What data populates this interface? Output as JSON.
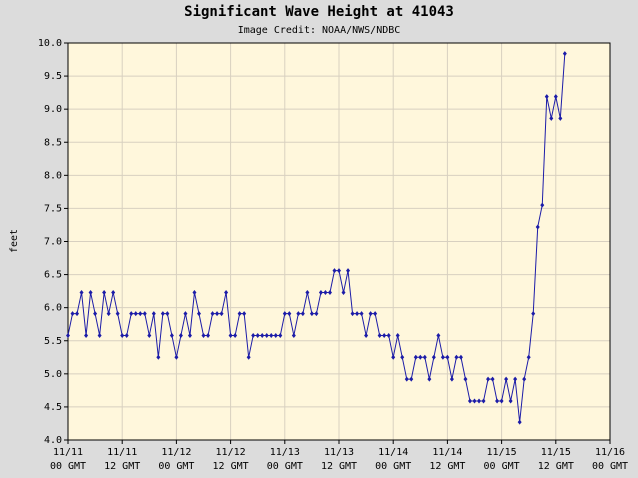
{
  "chart_data": {
    "type": "line",
    "title": "Significant Wave Height at 41043",
    "subtitle": "Image Credit: NOAA/NWS/NDBC",
    "y_label": "feet",
    "grid": true,
    "xlim": [
      "11/11 00",
      "11/16 00"
    ],
    "ylim": [
      4,
      10
    ],
    "yticks": [
      {
        "value": 4,
        "label": "4.0"
      },
      4.5,
      {
        "value": 5,
        "label": "5.0"
      },
      5.5,
      {
        "value": 6,
        "label": "6.0"
      },
      6.5,
      {
        "value": 7,
        "label": "7.0"
      },
      7.5,
      {
        "value": 8,
        "label": "8.0"
      },
      8.5,
      {
        "value": 9,
        "label": "9.0"
      },
      9.5,
      {
        "value": 10,
        "label": "10.0"
      }
    ],
    "xticks": [
      {
        "value": "11/11 00",
        "label": [
          "11/11",
          "00 GMT"
        ]
      },
      {
        "value": "11/11 12",
        "label": [
          "11/11",
          "12 GMT"
        ]
      },
      {
        "value": "11/12 00",
        "label": [
          "11/12",
          "00 GMT"
        ]
      },
      {
        "value": "11/12 12",
        "label": [
          "11/12",
          "12 GMT"
        ]
      },
      {
        "value": "11/13 00",
        "label": [
          "11/13",
          "00 GMT"
        ]
      },
      {
        "value": "11/13 12",
        "label": [
          "11/13",
          "12 GMT"
        ]
      },
      {
        "value": "11/14 00",
        "label": [
          "11/14",
          "00 GMT"
        ]
      },
      {
        "value": "11/14 12",
        "label": [
          "11/14",
          "12 GMT"
        ]
      },
      {
        "value": "11/15 00",
        "label": [
          "11/15",
          "00 GMT"
        ]
      },
      {
        "value": "11/15 12",
        "label": [
          "11/15",
          "12 GMT"
        ]
      },
      {
        "value": "11/16 00",
        "label": [
          "11/16",
          "00 GMT"
        ]
      }
    ],
    "x": [
      "11/11 00",
      "11/11 01",
      "11/11 02",
      "11/11 03",
      "11/11 04",
      "11/11 05",
      "11/11 06",
      "11/11 07",
      "11/11 08",
      "11/11 09",
      "11/11 10",
      "11/11 11",
      "11/11 12",
      "11/11 13",
      "11/11 14",
      "11/11 15",
      "11/11 16",
      "11/11 17",
      "11/11 18",
      "11/11 19",
      "11/11 20",
      "11/11 21",
      "11/11 22",
      "11/11 23",
      "11/12 00",
      "11/12 01",
      "11/12 02",
      "11/12 03",
      "11/12 04",
      "11/12 05",
      "11/12 06",
      "11/12 07",
      "11/12 08",
      "11/12 09",
      "11/12 10",
      "11/12 11",
      "11/12 12",
      "11/12 13",
      "11/12 14",
      "11/12 15",
      "11/12 16",
      "11/12 17",
      "11/12 18",
      "11/12 19",
      "11/12 20",
      "11/12 21",
      "11/12 22",
      "11/12 23",
      "11/13 00",
      "11/13 01",
      "11/13 02",
      "11/13 03",
      "11/13 04",
      "11/13 05",
      "11/13 06",
      "11/13 07",
      "11/13 08",
      "11/13 09",
      "11/13 10",
      "11/13 11",
      "11/13 12",
      "11/13 13",
      "11/13 14",
      "11/13 15",
      "11/13 16",
      "11/13 17",
      "11/13 18",
      "11/13 19",
      "11/13 20",
      "11/13 21",
      "11/13 22",
      "11/13 23",
      "11/14 00",
      "11/14 01",
      "11/14 02",
      "11/14 03",
      "11/14 04",
      "11/14 05",
      "11/14 06",
      "11/14 07",
      "11/14 08",
      "11/14 09",
      "11/14 10",
      "11/14 11",
      "11/14 12",
      "11/14 13",
      "11/14 14",
      "11/14 15",
      "11/14 16",
      "11/14 17",
      "11/14 18",
      "11/14 19",
      "11/14 20",
      "11/14 21",
      "11/14 22",
      "11/14 23",
      "11/15 00",
      "11/15 01",
      "11/15 02",
      "11/15 03",
      "11/15 04",
      "11/15 05",
      "11/15 06",
      "11/15 07",
      "11/15 08",
      "11/15 09",
      "11/15 10",
      "11/15 11",
      "11/15 12",
      "11/15 13",
      "11/15 14"
    ],
    "series": [
      {
        "color": "#1c1ca8",
        "values": [
          5.58,
          5.91,
          5.91,
          6.23,
          5.58,
          6.23,
          5.91,
          5.58,
          6.23,
          5.91,
          6.23,
          5.91,
          5.58,
          5.58,
          5.91,
          5.91,
          5.91,
          5.91,
          5.58,
          5.91,
          5.25,
          5.91,
          5.91,
          5.58,
          5.25,
          5.58,
          5.91,
          5.58,
          6.23,
          5.91,
          5.58,
          5.58,
          5.91,
          5.91,
          5.91,
          6.23,
          5.58,
          5.58,
          5.91,
          5.91,
          5.25,
          5.58,
          5.58,
          5.58,
          5.58,
          5.58,
          5.58,
          5.58,
          5.91,
          5.91,
          5.58,
          5.91,
          5.91,
          6.23,
          5.91,
          5.91,
          6.23,
          6.23,
          6.23,
          6.56,
          6.56,
          6.23,
          6.56,
          5.91,
          5.91,
          5.91,
          5.58,
          5.91,
          5.91,
          5.58,
          5.58,
          5.58,
          5.25,
          5.58,
          5.25,
          4.92,
          4.92,
          5.25,
          5.25,
          5.25,
          4.92,
          5.25,
          5.58,
          5.25,
          5.25,
          4.92,
          5.25,
          5.25,
          4.92,
          4.59,
          4.59,
          4.59,
          4.59,
          4.92,
          4.92,
          4.59,
          4.59,
          4.92,
          4.59,
          4.92,
          4.27,
          4.92,
          5.25,
          5.91,
          7.22,
          7.55,
          9.19,
          8.86,
          9.19,
          8.86,
          9.84
        ]
      }
    ]
  }
}
